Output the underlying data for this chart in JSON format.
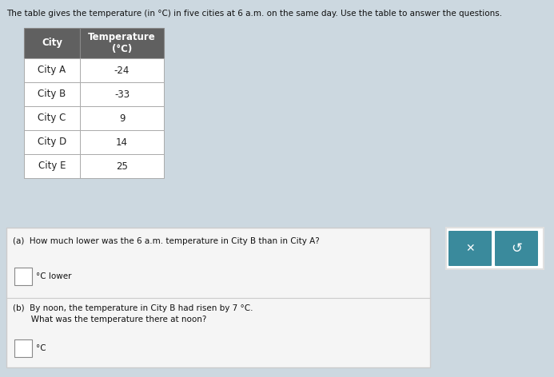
{
  "title": "The table gives the temperature (in °C) in five cities at 6 a.m. on the same day. Use the table to answer the questions.",
  "bg_color": "#ccd8e0",
  "page_bg": "#d5e2ea",
  "cities": [
    "City A",
    "City B",
    "City C",
    "City D",
    "City E"
  ],
  "temperatures": [
    "-24",
    "-33",
    "9",
    "14",
    "25"
  ],
  "header_city": "City",
  "header_temp": "Temperature\n(°C)",
  "header_bg": "#606060",
  "header_text_color": "#ffffff",
  "row_bg": "#f0f0f0",
  "row_border": "#aaaaaa",
  "question_a": "(a)  How much lower was the 6 a.m. temperature in City B than in City A?",
  "answer_a_label": "°C lower",
  "question_b_line1": "(b)  By noon, the temperature in City B had risen by 7 °C.",
  "question_b_line2": "       What was the temperature there at noon?",
  "answer_b_label": "°C",
  "btn_color": "#3a8a9c",
  "btn_border": "#e0e0e0",
  "qbox_bg": "#f5f5f5",
  "qbox_border": "#cccccc",
  "divider_color": "#cccccc",
  "title_fontsize": 7.5,
  "header_fontsize": 8.5,
  "data_fontsize": 8.5,
  "q_fontsize": 7.5,
  "btn_fontsize": 10
}
